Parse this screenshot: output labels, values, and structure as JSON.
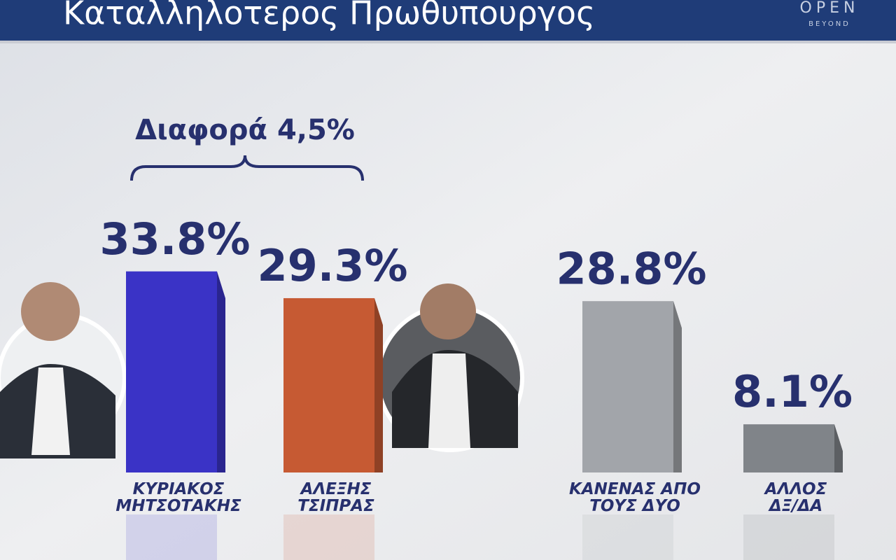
{
  "chart_data": {
    "type": "bar",
    "title": "Καταλληλοτερος Πρωθυπουργος",
    "categories": [
      "ΚΥΡΙΑΚΟΣ\nΜΗΤΣΟΤΑΚΗΣ",
      "ΑΛΕΞΗΣ\nΤΣΙΠΡΑΣ",
      "ΚΑΝΕΝΑΣ ΑΠΟ\nΤΟΥΣ ΔΥΟ",
      "ΑΛΛΟΣ\nΔΞ/ΔΑ"
    ],
    "values": [
      33.8,
      29.3,
      28.8,
      8.1
    ],
    "value_labels": [
      "33.8%",
      "29.3%",
      "28.8%",
      "8.1%"
    ],
    "colors": [
      "#3a33c6",
      "#c65a33",
      "#a2a5aa",
      "#808489"
    ],
    "annotation": "Διαφορά 4,5%"
  },
  "logo": {
    "text": "OPEN",
    "subtext": "BEYOND"
  }
}
